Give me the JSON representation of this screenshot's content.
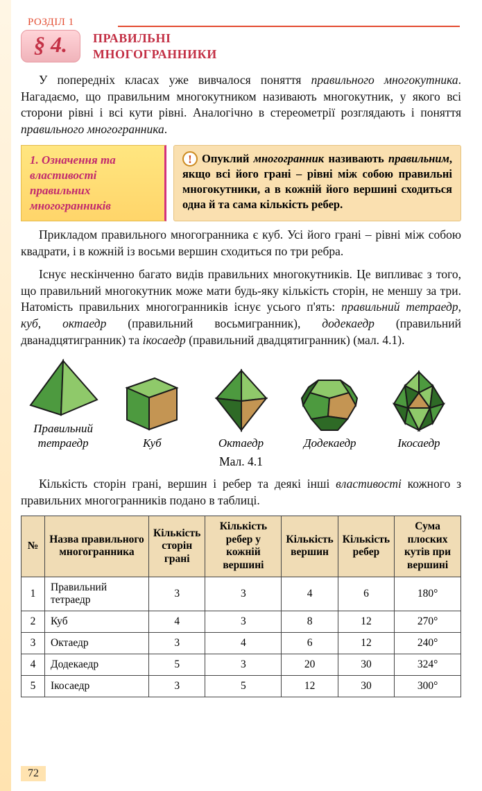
{
  "chapterLabel": "РОЗДІЛ 1",
  "sectionBadge": "§ 4.",
  "sectionTitle": "ПРАВИЛЬНІ\nМНОГОГРАННИКИ",
  "intro": {
    "p1_a": "У попередніх класах уже вивчалося поняття ",
    "p1_em1": "правильного многокутника",
    "p1_b": ". Нагадаємо, що правильним многокутником називають многокутник, у якого всі сторони рівні і всі кути рівні. Аналогічно в стереометрії розглядають і поняття ",
    "p1_em2": "правильного многогранника",
    "p1_c": "."
  },
  "subsection": {
    "label": "1. Означення та властивості правильних многогранників",
    "def_a": "Опуклий ",
    "def_em1": "многогранник",
    "def_b": " називають ",
    "def_em2": "правильним",
    "def_c": ", якщо всі його грані – рівні між собою правильні многокутники, а в кожній його вершині сходиться одна й та сама кількість ребер."
  },
  "para2_a": "Прикладом правильного многогранника є куб. Усі його грані – рівні між собою квадрати, і в кожній із восьми вершин сходиться по три ребра.",
  "para3_a": "Існує нескінченно багато видів правильних многокутників. Це випливає з того, що правильний многокутник може мати будь-яку кількість сторін, не меншу за три. Натомість правильних многогранників існує усього п'ять: ",
  "para3_em1": "правильний тетраедр",
  "para3_b": ", ",
  "para3_em2": "куб",
  "para3_c": ", ",
  "para3_em3": "октаедр",
  "para3_d": " (правильний восьмигранник), ",
  "para3_em4": "додекаедр",
  "para3_e": " (правильний дванадцятигранник) та ",
  "para3_em5": "ікосаедр",
  "para3_f": " (правильний двадцятигранник) (мал. 4.1).",
  "figures": {
    "items": [
      {
        "name": "Правильний\nтетраедр"
      },
      {
        "name": "Куб"
      },
      {
        "name": "Октаедр"
      },
      {
        "name": "Додекаедр"
      },
      {
        "name": "Ікосаедр"
      }
    ],
    "label": "Мал. 4.1",
    "colors": {
      "face_light": "#8fc96a",
      "face_mid": "#4d9a3f",
      "face_dark": "#2e6a26",
      "face_tan": "#c49553",
      "edge": "#1a1a1a"
    }
  },
  "tableIntro_a": "Кількість сторін грані, вершин і ребер та деякі інші ",
  "tableIntro_em": "властивості",
  "tableIntro_b": " кожного з правильних многогранників подано в таблиці.",
  "table": {
    "headers": {
      "num": "№",
      "name": "Назва правильного многогранника",
      "sides": "Кількість сторін грані",
      "edgesVertex": "Кількість ребер у кожній вершині",
      "vertices": "Кількість вершин",
      "edges": "Кількість ребер",
      "angleSum": "Сума плоских кутів при вершині"
    },
    "rows": [
      {
        "n": "1",
        "name": "Правильний тетраедр",
        "s": "3",
        "ev": "3",
        "v": "4",
        "e": "6",
        "a": "180°"
      },
      {
        "n": "2",
        "name": "Куб",
        "s": "4",
        "ev": "3",
        "v": "8",
        "e": "12",
        "a": "270°"
      },
      {
        "n": "3",
        "name": "Октаедр",
        "s": "3",
        "ev": "4",
        "v": "6",
        "e": "12",
        "a": "240°"
      },
      {
        "n": "4",
        "name": "Додекаедр",
        "s": "5",
        "ev": "3",
        "v": "20",
        "e": "30",
        "a": "324°"
      },
      {
        "n": "5",
        "name": "Ікосаедр",
        "s": "3",
        "ev": "5",
        "v": "12",
        "e": "30",
        "a": "300°"
      }
    ],
    "header_bg": "#f0dcb5",
    "border_color": "#333"
  },
  "pageNumber": "72"
}
